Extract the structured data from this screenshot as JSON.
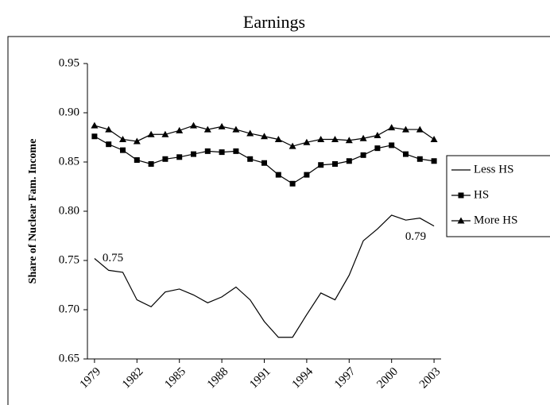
{
  "chart_data": {
    "type": "line",
    "title": "Earnings",
    "y_label": "Share of Nuclear Fam. Income",
    "x": [
      1979,
      1980,
      1981,
      1982,
      1983,
      1984,
      1985,
      1986,
      1987,
      1988,
      1989,
      1990,
      1991,
      1992,
      1993,
      1994,
      1995,
      1996,
      1997,
      1998,
      1999,
      2000,
      2001,
      2002,
      2003
    ],
    "xlim": [
      1978.5,
      2003.5
    ],
    "xticks": [
      1979,
      1982,
      1985,
      1988,
      1991,
      1994,
      1997,
      2000,
      2003
    ],
    "ylim": [
      0.65,
      0.95
    ],
    "yticks": [
      0.65,
      {
        "value": 0.7,
        "label": "0.70"
      },
      0.75,
      {
        "value": 0.8,
        "label": "0.80"
      },
      0.85,
      {
        "value": 0.9,
        "label": "0.90"
      },
      0.95
    ],
    "legend": "right",
    "series": [
      {
        "name": "Less HS",
        "color": "#000000",
        "marker": "none",
        "values": [
          0.752,
          0.74,
          0.738,
          0.71,
          0.703,
          0.718,
          0.721,
          0.715,
          0.707,
          0.713,
          0.723,
          0.71,
          0.688,
          0.672,
          0.672,
          0.695,
          0.717,
          0.71,
          0.735,
          0.77,
          0.782,
          0.796,
          0.791,
          0.793,
          0.785
        ],
        "value_labels": [
          "0.75",
          null,
          null,
          null,
          null,
          null,
          null,
          null,
          null,
          null,
          null,
          null,
          null,
          null,
          null,
          null,
          null,
          null,
          null,
          null,
          null,
          null,
          null,
          null,
          "0.79"
        ]
      },
      {
        "name": "HS",
        "color": "#000000",
        "marker": "square",
        "values": [
          0.876,
          0.868,
          0.862,
          0.852,
          0.848,
          0.853,
          0.855,
          0.858,
          0.861,
          0.86,
          0.861,
          0.853,
          0.849,
          0.837,
          0.828,
          0.837,
          0.847,
          0.848,
          0.851,
          0.857,
          0.864,
          0.867,
          0.858,
          0.853,
          0.851
        ]
      },
      {
        "name": "More HS",
        "color": "#000000",
        "marker": "triangle",
        "values": [
          0.887,
          0.883,
          0.873,
          0.871,
          0.878,
          0.878,
          0.882,
          0.887,
          0.883,
          0.886,
          0.883,
          0.879,
          0.876,
          0.873,
          0.866,
          0.87,
          0.873,
          0.873,
          0.872,
          0.874,
          0.877,
          0.885,
          0.883,
          0.883,
          0.873
        ]
      }
    ]
  }
}
